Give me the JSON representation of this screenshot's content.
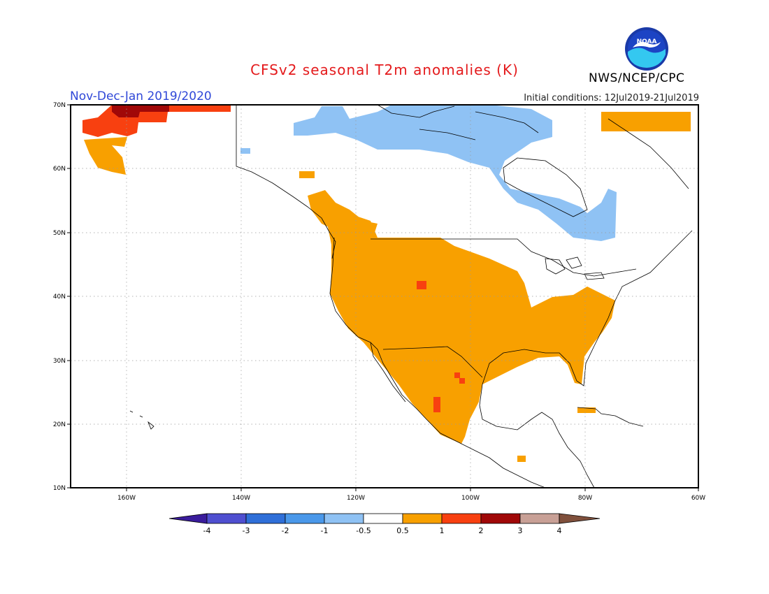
{
  "header": {
    "title": "CFSv2 seasonal T2m anomalies (K)",
    "period": "Nov-Dec-Jan 2019/2020",
    "initial_conditions": "Initial conditions: 12Jul2019-21Jul2019",
    "agency": "NWS/NCEP/CPC",
    "logo_text": "NOAA"
  },
  "map": {
    "region": "North America",
    "lat_labels": [
      "70N",
      "60N",
      "50N",
      "40N",
      "30N",
      "20N",
      "10N"
    ],
    "lon_labels": [
      "160W",
      "140W",
      "120W",
      "100W",
      "80W",
      "60W"
    ],
    "grid": true,
    "colors": {
      "neg4": "#3a1c9c",
      "neg3": "#4f4fd0",
      "neg2": "#2f6fd8",
      "neg1": "#4a98ea",
      "neg05": "#8fc2f4",
      "neutral": "#ffffff",
      "pos05": "#f8a000",
      "pos1": "#f84010",
      "pos2": "#a00808",
      "pos3": "#c8a096",
      "pos4": "#80503c",
      "land_outline": "#000000"
    }
  },
  "colorbar": {
    "ticks": [
      "-4",
      "-3",
      "-2",
      "-1",
      "-0.5",
      "0.5",
      "1",
      "2",
      "3",
      "4"
    ]
  }
}
